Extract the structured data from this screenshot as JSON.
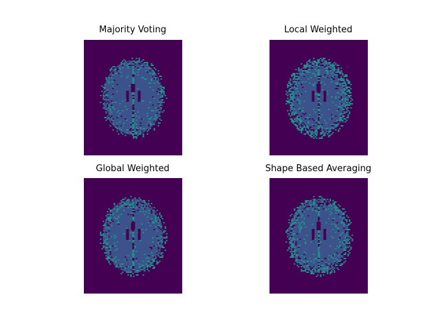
{
  "figure": {
    "background": "#ffffff",
    "colormap": "viridis",
    "colors": {
      "background_label": "#440154",
      "tissue_label": "#3b528b",
      "edge_label": "#21918c"
    },
    "panels": [
      {
        "id": "mv",
        "title": "Majority Voting",
        "edge_density": 0.45,
        "seed": 11,
        "inner_fill": 0.55
      },
      {
        "id": "lw",
        "title": "Local Weighted",
        "edge_density": 0.8,
        "seed": 29,
        "inner_fill": 0.35
      },
      {
        "id": "gw",
        "title": "Global Weighted",
        "edge_density": 0.45,
        "seed": 47,
        "inner_fill": 0.55
      },
      {
        "id": "sba",
        "title": "Shape Based Averaging",
        "edge_density": 0.6,
        "seed": 73,
        "inner_fill": 0.45
      }
    ]
  }
}
